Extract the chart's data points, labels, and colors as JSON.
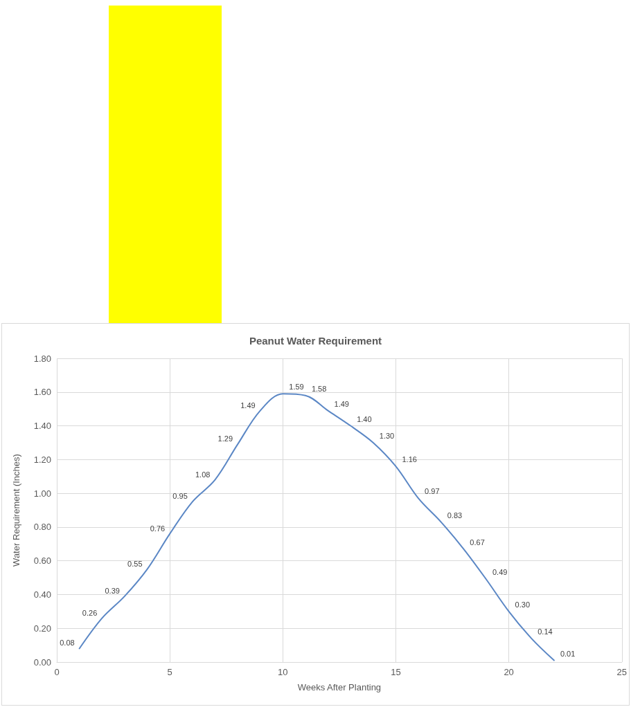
{
  "chart_data": {
    "type": "line",
    "title": "Peanut Water Requirement",
    "xlabel": "Weeks After Planting",
    "ylabel": "Water Requirement (Inches)",
    "x": [
      1,
      2,
      3,
      4,
      5,
      6,
      7,
      8,
      9,
      10,
      11,
      12,
      13,
      14,
      15,
      16,
      17,
      18,
      19,
      20,
      21,
      22
    ],
    "series": [
      {
        "color": "#5b87c5",
        "values": [
          0.08,
          0.26,
          0.39,
          0.55,
          0.76,
          0.95,
          1.08,
          1.29,
          1.49,
          1.59,
          1.58,
          1.49,
          1.4,
          1.3,
          1.16,
          0.97,
          0.83,
          0.67,
          0.49,
          0.3,
          0.14,
          0.01
        ],
        "value_labels": [
          "0.08",
          "0.26",
          "0.39",
          "0.55",
          "0.76",
          "0.95",
          "1.08",
          "1.29",
          "1.49",
          "1.59",
          "1.58",
          "1.49",
          "1.40",
          "1.30",
          "1.16",
          "0.97",
          "0.83",
          "0.67",
          "0.49",
          "0.30",
          "0.14",
          "0.01"
        ]
      }
    ],
    "xlim": [
      0,
      25
    ],
    "xticks": [
      0,
      5,
      10,
      15,
      20,
      25
    ],
    "ylim": [
      0,
      1.8
    ],
    "yticks": [
      {
        "value": 0,
        "label": "0.00"
      },
      {
        "value": 0.2,
        "label": "0.20"
      },
      {
        "value": 0.4,
        "label": "0.40"
      },
      {
        "value": 0.6,
        "label": "0.60"
      },
      {
        "value": 0.8,
        "label": "0.80"
      },
      {
        "value": 1,
        "label": "1.00"
      },
      {
        "value": 1.2,
        "label": "1.20"
      },
      {
        "value": 1.4,
        "label": "1.40"
      },
      {
        "value": 1.6,
        "label": "1.60"
      },
      {
        "value": 1.8,
        "label": "1.80"
      }
    ],
    "grid": true,
    "marker": "none",
    "line_style": "solid"
  }
}
